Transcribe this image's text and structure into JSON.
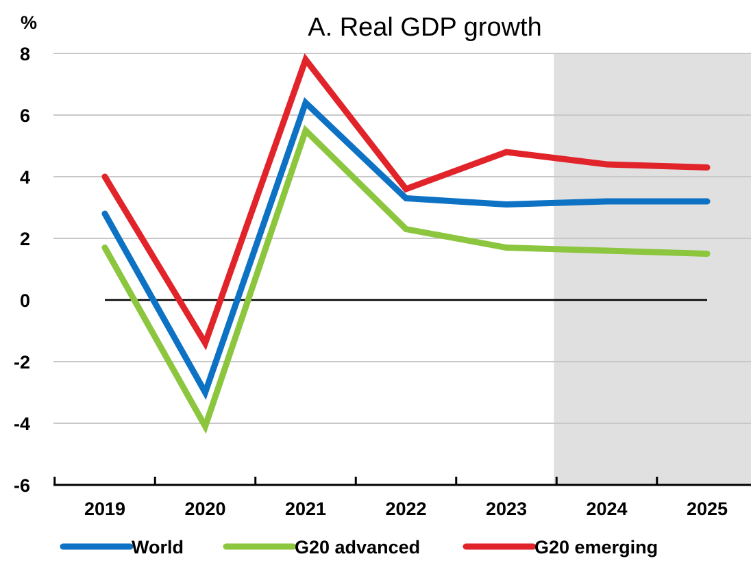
{
  "chart_data": {
    "type": "line",
    "title": "A. Real GDP growth",
    "ylabel": "%",
    "xlabel": "",
    "categories": [
      "2019",
      "2020",
      "2021",
      "2022",
      "2023",
      "2024",
      "2025"
    ],
    "ylim": [
      -6,
      8
    ],
    "yticks": [
      "-6",
      "-4",
      "-2",
      "0",
      "2",
      "4",
      "6",
      "8"
    ],
    "grid": true,
    "projection_shading": {
      "from": "2024",
      "to": "2025",
      "color": "#e0e0e0"
    },
    "legend_position": "bottom",
    "series": [
      {
        "name": "World",
        "color": "#0d72c4",
        "values": [
          2.8,
          -3.0,
          6.4,
          3.3,
          3.1,
          3.2,
          3.2
        ]
      },
      {
        "name": "G20 advanced",
        "color": "#8cc63f",
        "values": [
          1.7,
          -4.1,
          5.5,
          2.3,
          1.7,
          1.6,
          1.5
        ]
      },
      {
        "name": "G20 emerging",
        "color": "#e1232a",
        "values": [
          4.0,
          -1.4,
          7.8,
          3.6,
          4.8,
          4.4,
          4.3
        ]
      }
    ]
  }
}
